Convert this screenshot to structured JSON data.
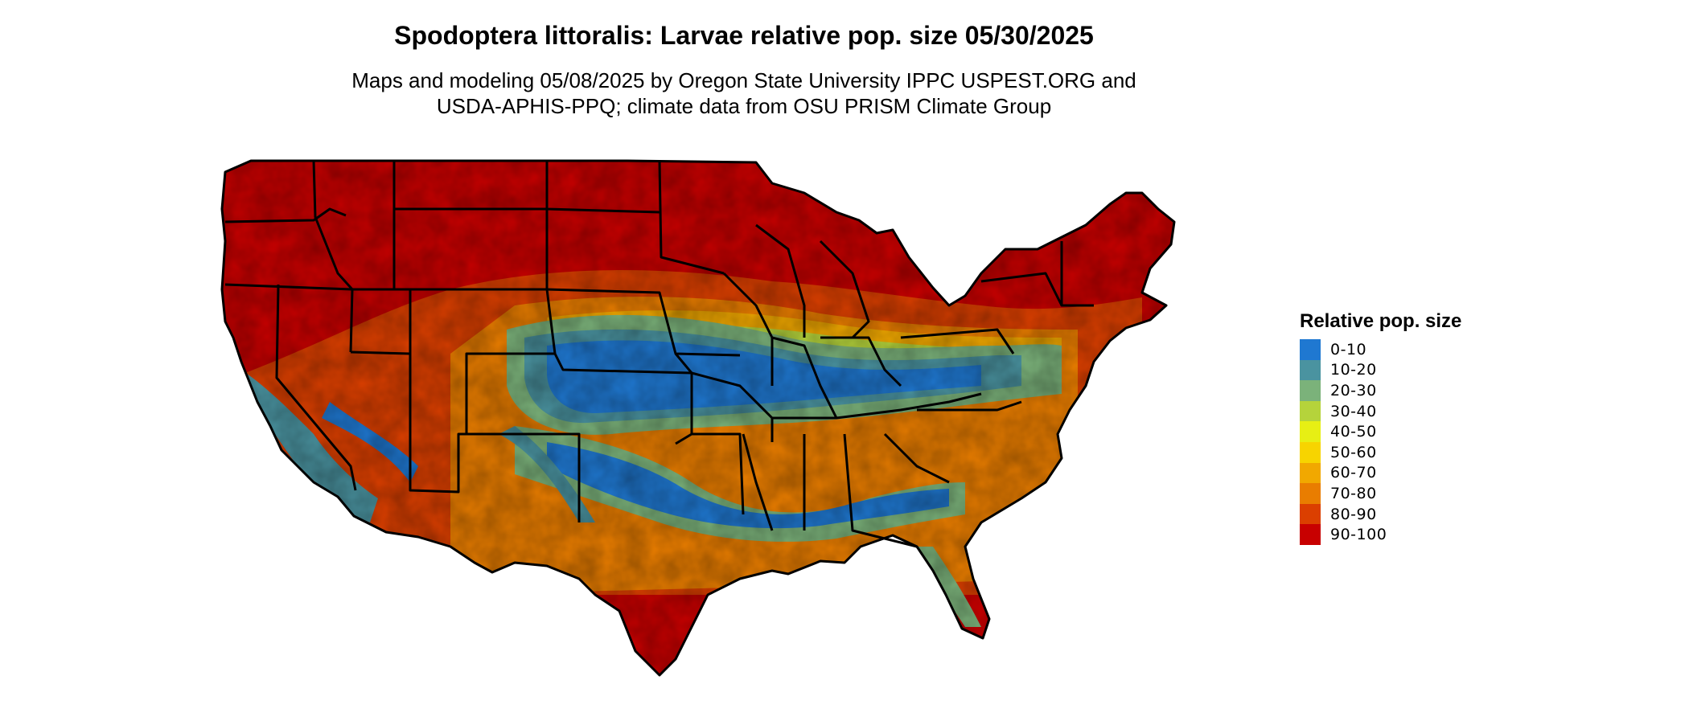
{
  "title": "Spodoptera littoralis: Larvae relative pop. size 05/30/2025",
  "subtitle_line1": "Maps and modeling 05/08/2025 by Oregon State University IPPC USPEST.ORG and",
  "subtitle_line2": "USDA-APHIS-PPQ; climate data from OSU PRISM Climate Group",
  "legend": {
    "title": "Relative pop. size",
    "items": [
      {
        "label": "0-10",
        "color": "#1f78d1"
      },
      {
        "label": "10-20",
        "color": "#4a93a0"
      },
      {
        "label": "20-30",
        "color": "#7bb27a"
      },
      {
        "label": "30-40",
        "color": "#b5d33b"
      },
      {
        "label": "40-50",
        "color": "#e7ef14"
      },
      {
        "label": "50-60",
        "color": "#f7d400"
      },
      {
        "label": "60-70",
        "color": "#f1a800"
      },
      {
        "label": "70-80",
        "color": "#e97d00"
      },
      {
        "label": "80-90",
        "color": "#db3f00"
      },
      {
        "label": "90-100",
        "color": "#c80000"
      }
    ]
  }
}
